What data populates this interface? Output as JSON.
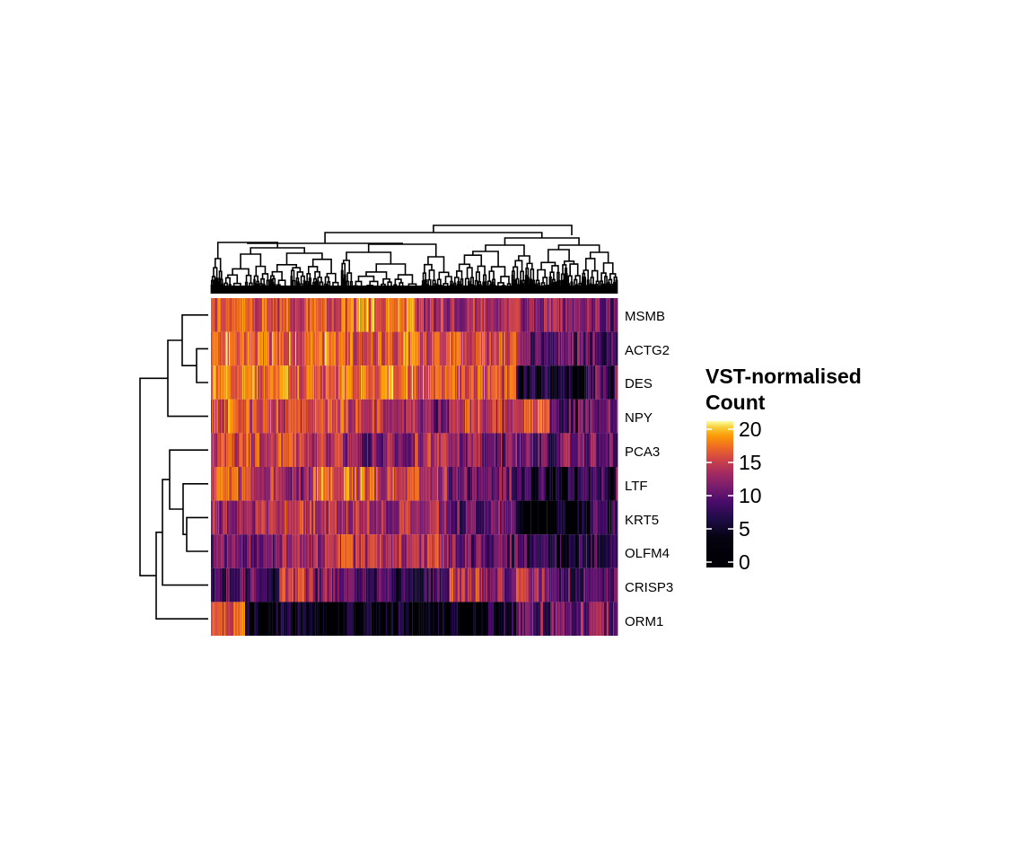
{
  "chart_data": {
    "type": "heatmap",
    "title": "",
    "xlabel": "",
    "ylabel": "",
    "rows": [
      "MSMB",
      "ACTG2",
      "DES",
      "NPY",
      "PCA3",
      "LTF",
      "KRT5",
      "OLFM4",
      "CRISP3",
      "ORM1"
    ],
    "row_dendrogram": true,
    "column_dendrogram": true,
    "column_labels_shown": false,
    "approx_segment_means_left_to_right": {
      "MSMB": [
        16,
        15,
        15,
        15,
        17,
        16,
        13,
        13,
        14,
        12,
        11,
        10
      ],
      "ACTG2": [
        16,
        16,
        16,
        16,
        16,
        16,
        15,
        15,
        14,
        9,
        9,
        8
      ],
      "DES": [
        16,
        16,
        16,
        16,
        16,
        17,
        16,
        16,
        15,
        5,
        6,
        8
      ],
      "NPY": [
        15,
        15,
        14,
        15,
        14,
        12,
        9,
        15,
        12,
        16,
        8,
        9
      ],
      "PCA3": [
        14,
        14,
        14,
        12,
        10,
        10,
        13,
        11,
        10,
        10,
        9,
        9
      ],
      "LTF": [
        15,
        13,
        11,
        16,
        16,
        14,
        13,
        9,
        9,
        6,
        5,
        7
      ],
      "KRT5": [
        12,
        12,
        13,
        13,
        13,
        12,
        12,
        9,
        9,
        3,
        3,
        6
      ],
      "OLFM4": [
        10,
        10,
        11,
        13,
        13,
        12,
        13,
        9,
        8,
        7,
        6,
        7
      ],
      "CRISP3": [
        8,
        8,
        13,
        9,
        9,
        7,
        7,
        13,
        10,
        12,
        8,
        9
      ],
      "ORM1": [
        16,
        3,
        3,
        3,
        3,
        3,
        3,
        3,
        4,
        9,
        10,
        10
      ]
    },
    "colorscale": "inferno",
    "legend": {
      "title_line1": "VST-normalised",
      "title_line2": "Count",
      "ticks": [
        "20",
        "15",
        "10",
        "5",
        "0"
      ],
      "range": [
        0,
        21
      ],
      "placement": "right"
    }
  }
}
